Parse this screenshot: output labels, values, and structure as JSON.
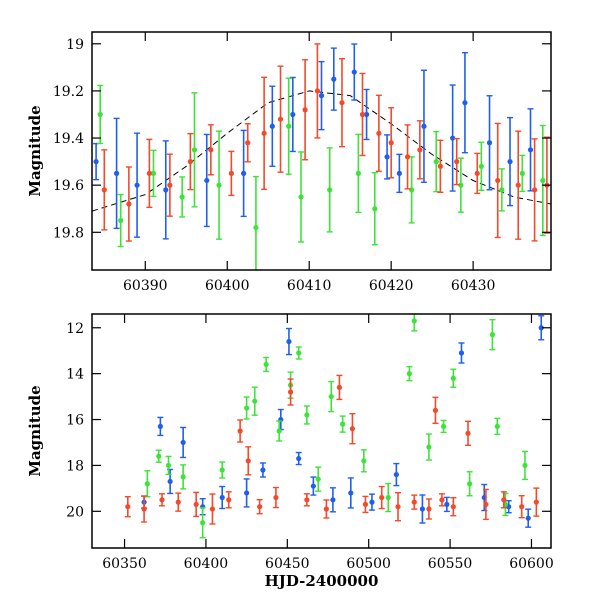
{
  "chart_data": [
    {
      "type": "scatter",
      "title": "",
      "xlabel": "",
      "ylabel": "Magnitude",
      "xlim": [
        60383.5,
        60439.5
      ],
      "ylim": [
        19.96,
        18.95
      ],
      "y_inverted": true,
      "xticks": [
        60390,
        60400,
        60410,
        60420,
        60430
      ],
      "yticks": [
        19.0,
        19.2,
        19.4,
        19.6,
        19.8
      ],
      "ytick_labels": [
        "19",
        "19.2",
        "19.4",
        "19.6",
        "19.8"
      ],
      "grid": false,
      "legend": "none",
      "model_curve": {
        "style": "dashed",
        "color": "#000000",
        "points": [
          [
            60383.5,
            19.71
          ],
          [
            60390,
            19.64
          ],
          [
            60395,
            19.52
          ],
          [
            60400,
            19.38
          ],
          [
            60405,
            19.25
          ],
          [
            60410,
            19.2
          ],
          [
            60415,
            19.22
          ],
          [
            60420,
            19.34
          ],
          [
            60425,
            19.47
          ],
          [
            60430,
            19.58
          ],
          [
            60435,
            19.65
          ],
          [
            60439.5,
            19.68
          ]
        ]
      },
      "series": [
        {
          "color": "#1f5ff0",
          "points": [
            [
              60384.0,
              19.5
            ],
            [
              60386.5,
              19.55
            ],
            [
              60389.0,
              19.6
            ],
            [
              60392.5,
              19.62
            ],
            [
              60397.5,
              19.58
            ],
            [
              60402.0,
              19.55
            ],
            [
              60405.5,
              19.35
            ],
            [
              60408.0,
              19.3
            ],
            [
              60411.5,
              19.22
            ],
            [
              60413.0,
              19.15
            ],
            [
              60415.5,
              19.12
            ],
            [
              60417.0,
              19.3
            ],
            [
              60419.5,
              19.48
            ],
            [
              60421.0,
              19.55
            ],
            [
              60424.0,
              19.35
            ],
            [
              60427.5,
              19.4
            ],
            [
              60429.0,
              19.25
            ],
            [
              60432.0,
              19.42
            ],
            [
              60434.5,
              19.5
            ],
            [
              60437.0,
              19.45
            ]
          ]
        },
        {
          "color": "#3ee33a",
          "points": [
            [
              60384.5,
              19.3
            ],
            [
              60387.0,
              19.75
            ],
            [
              60391.0,
              19.55
            ],
            [
              60394.5,
              19.65
            ],
            [
              60396.0,
              19.45
            ],
            [
              60399.0,
              19.6
            ],
            [
              60403.5,
              19.78
            ],
            [
              60407.5,
              19.35
            ],
            [
              60409.0,
              19.65
            ],
            [
              60412.5,
              19.62
            ],
            [
              60416.0,
              19.55
            ],
            [
              60418.0,
              19.7
            ],
            [
              60422.5,
              19.62
            ],
            [
              60425.5,
              19.5
            ],
            [
              60428.5,
              19.6
            ],
            [
              60431.0,
              19.52
            ],
            [
              60433.5,
              19.62
            ],
            [
              60436.0,
              19.55
            ],
            [
              60438.5,
              19.58
            ]
          ]
        },
        {
          "color": "#f24a2b",
          "points": [
            [
              60385.0,
              19.62
            ],
            [
              60388.0,
              19.68
            ],
            [
              60390.5,
              19.55
            ],
            [
              60393.0,
              19.6
            ],
            [
              60395.5,
              19.5
            ],
            [
              60398.0,
              19.45
            ],
            [
              60400.5,
              19.55
            ],
            [
              60402.5,
              19.42
            ],
            [
              60404.5,
              19.38
            ],
            [
              60406.5,
              19.32
            ],
            [
              60409.5,
              19.28
            ],
            [
              60411.0,
              19.2
            ],
            [
              60414.0,
              19.25
            ],
            [
              60416.5,
              19.3
            ],
            [
              60418.5,
              19.38
            ],
            [
              60420.0,
              19.42
            ],
            [
              60422.0,
              19.48
            ],
            [
              60423.5,
              19.45
            ],
            [
              60426.0,
              19.52
            ],
            [
              60428.0,
              19.5
            ],
            [
              60430.5,
              19.55
            ],
            [
              60433.0,
              19.58
            ],
            [
              60435.5,
              19.6
            ],
            [
              60437.5,
              19.62
            ],
            [
              60439.0,
              19.6
            ]
          ]
        }
      ]
    },
    {
      "type": "scatter",
      "title": "",
      "xlabel": "HJD-2400000",
      "ylabel": "Magnitude",
      "xlim": [
        60330,
        60612
      ],
      "ylim": [
        21.6,
        11.4
      ],
      "y_inverted": true,
      "xticks": [
        60350,
        60400,
        60450,
        60500,
        60550,
        60600
      ],
      "yticks": [
        12,
        14,
        16,
        18,
        20
      ],
      "ytick_labels": [
        "12",
        "14",
        "16",
        "18",
        "20"
      ],
      "grid": false,
      "legend": "none",
      "series": [
        {
          "color": "#1f5ff0",
          "points": [
            [
              60362,
              19.6
            ],
            [
              60372,
              16.3
            ],
            [
              60378,
              18.7
            ],
            [
              60386,
              17.0
            ],
            [
              60398,
              19.8
            ],
            [
              60410,
              19.4
            ],
            [
              60425,
              19.2
            ],
            [
              60435,
              18.2
            ],
            [
              60446,
              16.0
            ],
            [
              60451,
              12.6
            ],
            [
              60457,
              17.7
            ],
            [
              60466,
              18.9
            ],
            [
              60478,
              19.5
            ],
            [
              60489,
              19.2
            ],
            [
              60502,
              19.6
            ],
            [
              60517,
              18.4
            ],
            [
              60533,
              19.9
            ],
            [
              60548,
              19.7
            ],
            [
              60557,
              13.1
            ],
            [
              60571,
              19.4
            ],
            [
              60586,
              19.8
            ],
            [
              60598,
              20.3
            ],
            [
              60606,
              12.0
            ]
          ]
        },
        {
          "color": "#3ee33a",
          "points": [
            [
              60364,
              18.8
            ],
            [
              60371,
              17.6
            ],
            [
              60377,
              18.0
            ],
            [
              60386,
              18.5
            ],
            [
              60398,
              20.5
            ],
            [
              60410,
              18.2
            ],
            [
              60425,
              15.5
            ],
            [
              60430,
              15.2
            ],
            [
              60437,
              13.6
            ],
            [
              60445,
              16.5
            ],
            [
              60452,
              14.5
            ],
            [
              60457,
              13.1
            ],
            [
              60462,
              15.8
            ],
            [
              60469,
              18.6
            ],
            [
              60477,
              15.0
            ],
            [
              60484,
              16.2
            ],
            [
              60497,
              17.8
            ],
            [
              60512,
              19.4
            ],
            [
              60525,
              14.0
            ],
            [
              60528,
              11.7
            ],
            [
              60537,
              17.2
            ],
            [
              60546,
              16.3
            ],
            [
              60552,
              14.2
            ],
            [
              60562,
              18.8
            ],
            [
              60576,
              12.3
            ],
            [
              60579,
              16.3
            ],
            [
              60584,
              19.7
            ],
            [
              60596,
              18.0
            ]
          ]
        },
        {
          "color": "#f24a2b",
          "points": [
            [
              60352,
              19.8
            ],
            [
              60362,
              19.9
            ],
            [
              60373,
              19.5
            ],
            [
              60383,
              19.6
            ],
            [
              60394,
              19.7
            ],
            [
              60404,
              19.9
            ],
            [
              60414,
              19.5
            ],
            [
              60421,
              16.5
            ],
            [
              60426,
              17.8
            ],
            [
              60433,
              19.8
            ],
            [
              60443,
              19.4
            ],
            [
              60452,
              14.8
            ],
            [
              60462,
              19.5
            ],
            [
              60474,
              19.9
            ],
            [
              60482,
              14.6
            ],
            [
              60490,
              16.4
            ],
            [
              60498,
              19.7
            ],
            [
              60508,
              19.4
            ],
            [
              60518,
              19.8
            ],
            [
              60528,
              19.6
            ],
            [
              60537,
              19.9
            ],
            [
              60541,
              15.6
            ],
            [
              60545,
              19.5
            ],
            [
              60552,
              19.8
            ],
            [
              60561,
              16.6
            ],
            [
              60572,
              19.7
            ],
            [
              60583,
              19.5
            ],
            [
              60594,
              19.8
            ],
            [
              60603,
              19.6
            ]
          ]
        }
      ]
    }
  ]
}
